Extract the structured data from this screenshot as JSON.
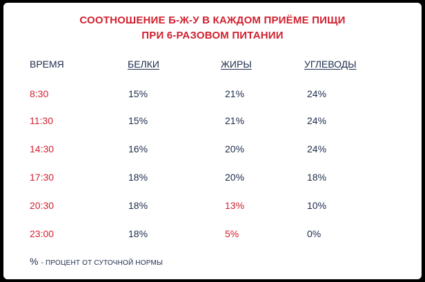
{
  "title": {
    "line1": "СООТНОШЕНИЕ Б-Ж-У В КАЖДОМ ПРИЁМЕ ПИЩИ",
    "line2": "ПРИ 6-РАЗОВОМ ПИТАНИИ"
  },
  "table": {
    "headers": {
      "time": "ВРЕМЯ",
      "protein": "БЕЛКИ",
      "fat": "ЖИРЫ",
      "carbs": "УГЛЕВОДЫ"
    },
    "rows": [
      {
        "time": "8:30",
        "protein": "15%",
        "fat": "21%",
        "carbs": "24%"
      },
      {
        "time": "11:30",
        "protein": "15%",
        "fat": "21%",
        "carbs": "24%"
      },
      {
        "time": "14:30",
        "protein": "16%",
        "fat": "20%",
        "carbs": "24%"
      },
      {
        "time": "17:30",
        "protein": "18%",
        "fat": "20%",
        "carbs": "18%"
      },
      {
        "time": "20:30",
        "protein": "18%",
        "fat": "13%",
        "carbs": "10%"
      },
      {
        "time": "23:00",
        "protein": "18%",
        "fat": "5%",
        "carbs": "0%"
      }
    ]
  },
  "footnote": {
    "symbol": "%",
    "text": "- ПРОЦЕНТ ОТ СУТОЧНОЙ НОРМЫ"
  },
  "colors": {
    "accent_red": "#d0202f",
    "text_navy": "#1b2a4a",
    "background": "#ffffff",
    "frame": "#000000"
  }
}
